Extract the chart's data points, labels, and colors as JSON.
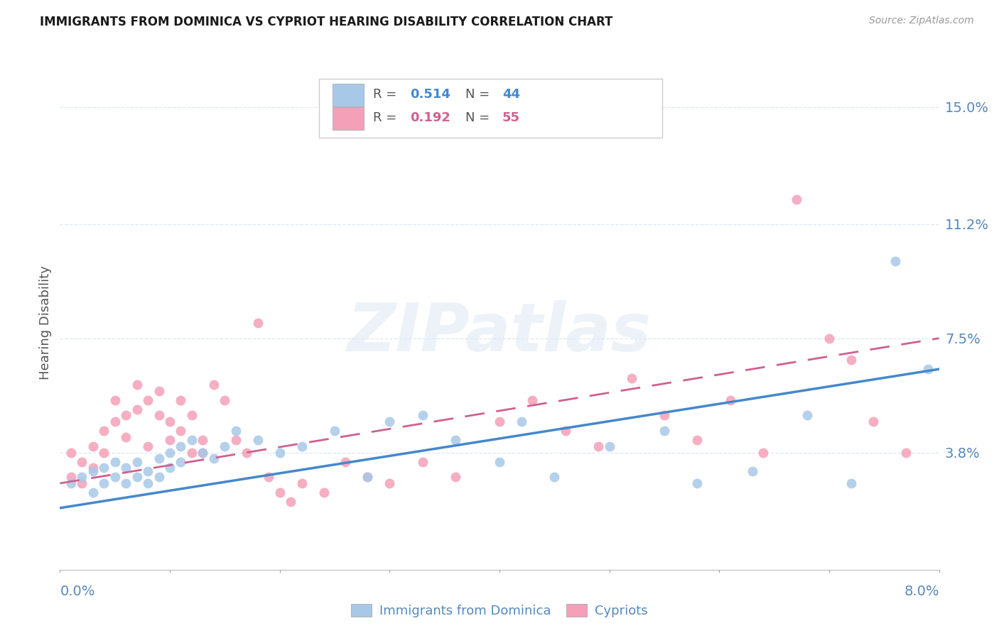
{
  "title": "IMMIGRANTS FROM DOMINICA VS CYPRIOT HEARING DISABILITY CORRELATION CHART",
  "source": "Source: ZipAtlas.com",
  "ylabel": "Hearing Disability",
  "ytick_labels": [
    "15.0%",
    "11.2%",
    "7.5%",
    "3.8%"
  ],
  "ytick_values": [
    0.15,
    0.112,
    0.075,
    0.038
  ],
  "xlim": [
    0.0,
    0.08
  ],
  "ylim": [
    0.0,
    0.16
  ],
  "legend_blue_r": "0.514",
  "legend_blue_n": "44",
  "legend_pink_r": "0.192",
  "legend_pink_n": "55",
  "legend_label_blue": "Immigrants from Dominica",
  "legend_label_pink": "Cypriots",
  "blue_color": "#a8c8e8",
  "pink_color": "#f4a0b8",
  "blue_line_color": "#4488cc",
  "pink_line_color": "#d06090",
  "axis_label_color": "#5588bb",
  "grid_color": "#dde8f0",
  "watermark": "ZIPatlas",
  "blue_scatter_x": [
    0.001,
    0.002,
    0.003,
    0.003,
    0.004,
    0.004,
    0.005,
    0.005,
    0.006,
    0.006,
    0.007,
    0.007,
    0.008,
    0.008,
    0.009,
    0.009,
    0.01,
    0.01,
    0.011,
    0.011,
    0.012,
    0.013,
    0.014,
    0.015,
    0.016,
    0.018,
    0.02,
    0.022,
    0.025,
    0.028,
    0.03,
    0.033,
    0.036,
    0.04,
    0.042,
    0.045,
    0.05,
    0.055,
    0.058,
    0.063,
    0.068,
    0.072,
    0.076,
    0.079
  ],
  "blue_scatter_y": [
    0.028,
    0.03,
    0.032,
    0.025,
    0.033,
    0.028,
    0.035,
    0.03,
    0.033,
    0.028,
    0.03,
    0.035,
    0.032,
    0.028,
    0.036,
    0.03,
    0.038,
    0.033,
    0.04,
    0.035,
    0.042,
    0.038,
    0.036,
    0.04,
    0.045,
    0.042,
    0.038,
    0.04,
    0.045,
    0.03,
    0.048,
    0.05,
    0.042,
    0.035,
    0.048,
    0.03,
    0.04,
    0.045,
    0.028,
    0.032,
    0.05,
    0.028,
    0.1,
    0.065
  ],
  "pink_scatter_x": [
    0.001,
    0.001,
    0.002,
    0.002,
    0.003,
    0.003,
    0.004,
    0.004,
    0.005,
    0.005,
    0.006,
    0.006,
    0.007,
    0.007,
    0.008,
    0.008,
    0.009,
    0.009,
    0.01,
    0.01,
    0.011,
    0.011,
    0.012,
    0.012,
    0.013,
    0.013,
    0.014,
    0.015,
    0.016,
    0.017,
    0.018,
    0.019,
    0.02,
    0.021,
    0.022,
    0.024,
    0.026,
    0.028,
    0.03,
    0.033,
    0.036,
    0.04,
    0.043,
    0.046,
    0.049,
    0.052,
    0.055,
    0.058,
    0.061,
    0.064,
    0.067,
    0.07,
    0.072,
    0.074,
    0.077
  ],
  "pink_scatter_y": [
    0.03,
    0.038,
    0.035,
    0.028,
    0.04,
    0.033,
    0.045,
    0.038,
    0.055,
    0.048,
    0.05,
    0.043,
    0.06,
    0.052,
    0.055,
    0.04,
    0.058,
    0.05,
    0.048,
    0.042,
    0.055,
    0.045,
    0.05,
    0.038,
    0.038,
    0.042,
    0.06,
    0.055,
    0.042,
    0.038,
    0.08,
    0.03,
    0.025,
    0.022,
    0.028,
    0.025,
    0.035,
    0.03,
    0.028,
    0.035,
    0.03,
    0.048,
    0.055,
    0.045,
    0.04,
    0.062,
    0.05,
    0.042,
    0.055,
    0.038,
    0.12,
    0.075,
    0.068,
    0.048,
    0.038
  ],
  "blue_line_x": [
    0.0,
    0.08
  ],
  "blue_line_y": [
    0.02,
    0.065
  ],
  "pink_line_x": [
    0.0,
    0.08
  ],
  "pink_line_y": [
    0.028,
    0.075
  ]
}
